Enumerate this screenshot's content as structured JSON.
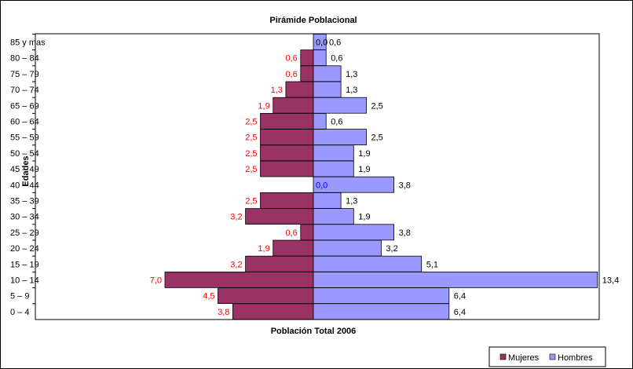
{
  "chart_data": {
    "type": "bar",
    "orientation": "horizontal-pyramid",
    "title": "Pirámide Poblacional",
    "xlabel": "Población Total 2006",
    "ylabel": "Edades",
    "categories": [
      "0 – 4",
      "5 – 9",
      "10 – 14",
      "15 – 19",
      "20 – 24",
      "25 – 29",
      "30 – 34",
      "35 – 39",
      "40 – 44",
      "45 – 49",
      "50 – 54",
      "55 – 59",
      "60 – 64",
      "65 – 69",
      "70 – 74",
      "75 – 79",
      "80 – 84",
      "85 y mas"
    ],
    "series": [
      {
        "name": "Mujeres",
        "color": "#993366",
        "label_color": "#ff0000",
        "values": [
          3.8,
          4.5,
          7.0,
          3.2,
          1.9,
          0.6,
          3.2,
          2.5,
          0.0,
          2.5,
          2.5,
          2.5,
          2.5,
          1.9,
          1.3,
          0.6,
          0.6,
          0.0
        ],
        "labels": [
          "3,8",
          "4,5",
          "7,0",
          "3,2",
          "1,9",
          "0,6",
          "3,2",
          "2,5",
          "0,0",
          "2,5",
          "2,5",
          "2,5",
          "2,5",
          "1,9",
          "1,3",
          "0,6",
          "0,6",
          "0,0"
        ]
      },
      {
        "name": "Hombres",
        "color": "#9999ff",
        "label_color": "#000000",
        "values": [
          6.4,
          6.4,
          13.4,
          5.1,
          3.2,
          3.8,
          1.9,
          1.3,
          3.8,
          1.9,
          1.9,
          2.5,
          0.6,
          2.5,
          1.3,
          1.3,
          0.6,
          0.6
        ],
        "labels": [
          "6,4",
          "6,4",
          "13,4",
          "5,1",
          "3,2",
          "3,8",
          "1,9",
          "1,3",
          "3,8",
          "1,9",
          "1,9",
          "2,5",
          "0,6",
          "2,5",
          "1,3",
          "1,3",
          "0,6",
          "0,6"
        ]
      }
    ],
    "legend_position": "bottom-right",
    "grid": false
  }
}
